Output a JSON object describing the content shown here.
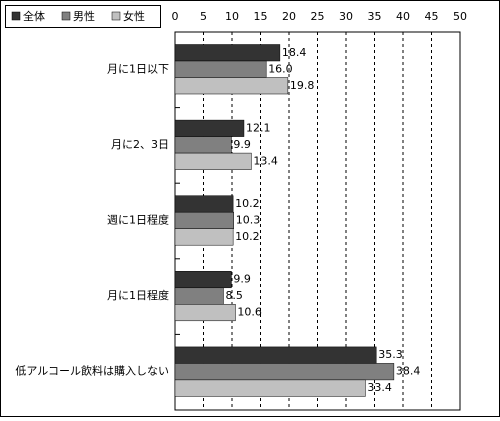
{
  "chart_data": {
    "type": "bar",
    "orientation": "horizontal",
    "categories": [
      "月に1日以下",
      "月に2、3日",
      "週に1日程度",
      "月に1日程度",
      "低アルコール飲料は購入しない"
    ],
    "series": [
      {
        "name": "全体",
        "color": "#333333",
        "values": [
          18.4,
          12.1,
          10.2,
          9.9,
          35.3
        ],
        "value_labels": [
          "18.4",
          "12.1",
          "10.2",
          "9.9",
          "35.3"
        ]
      },
      {
        "name": "男性",
        "color": "#808080",
        "values": [
          16.0,
          9.9,
          10.3,
          8.5,
          38.4
        ],
        "value_labels": [
          "16.0",
          "9.9",
          "10.3",
          "8.5",
          "38.4"
        ]
      },
      {
        "name": "女性",
        "color": "#c0c0c0",
        "values": [
          19.8,
          13.4,
          10.2,
          10.6,
          33.4
        ],
        "value_labels": [
          "19.8",
          "13.4",
          "10.2",
          "10.6",
          "33.4"
        ]
      }
    ],
    "xlim": [
      0,
      50
    ],
    "xticks": [
      0,
      5,
      10,
      15,
      20,
      25,
      30,
      35,
      40,
      45,
      50
    ],
    "grid": true
  }
}
